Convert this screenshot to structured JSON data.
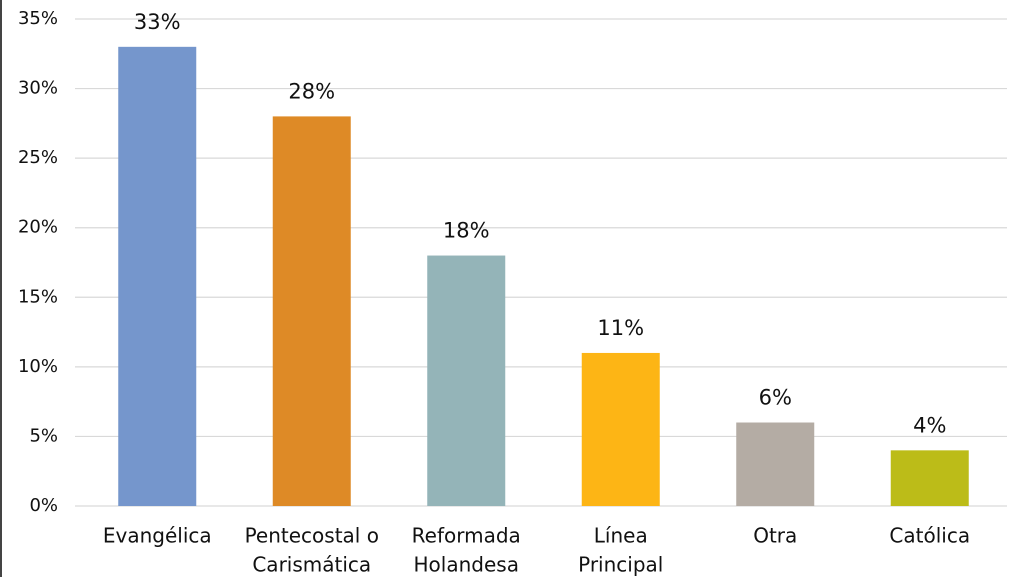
{
  "chart_data": {
    "type": "bar",
    "categories": [
      [
        "Evangélica"
      ],
      [
        "Pentecostal o",
        "Carismática"
      ],
      [
        "Reformada",
        "Holandesa"
      ],
      [
        "Línea",
        "Principal"
      ],
      [
        "Otra"
      ],
      [
        "Católica"
      ]
    ],
    "values": [
      33,
      28,
      18,
      11,
      6,
      4
    ],
    "value_labels": [
      "33%",
      "28%",
      "18%",
      "11%",
      "6%",
      "4%"
    ],
    "colors": [
      "#7596cc",
      "#de8a26",
      "#94b4b8",
      "#fdb515",
      "#b4aca4",
      "#bcbc18"
    ],
    "ylim": [
      0,
      35
    ],
    "yticks": [
      {
        "value": 0,
        "label": "0%"
      },
      {
        "value": 5,
        "label": "5%"
      },
      {
        "value": 10,
        "label": "10%"
      },
      {
        "value": 15,
        "label": "15%"
      },
      {
        "value": 20,
        "label": "20%"
      },
      {
        "value": 25,
        "label": "25%"
      },
      {
        "value": 30,
        "label": "30%"
      },
      {
        "value": 35,
        "label": "35%"
      }
    ],
    "grid": true
  }
}
